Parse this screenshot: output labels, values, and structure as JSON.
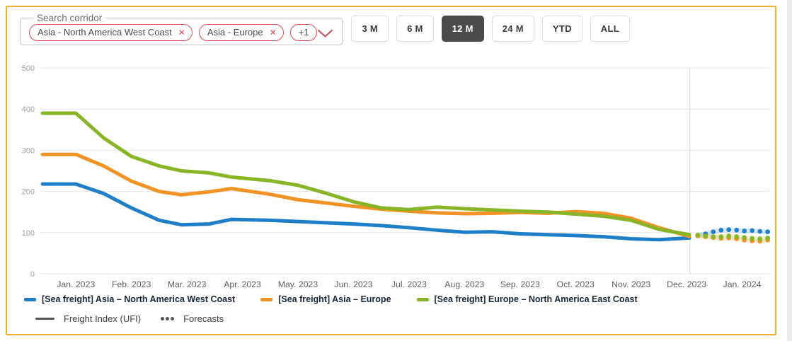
{
  "header": {
    "search_fieldset_label": "Search corridor",
    "corridor_tags": [
      {
        "label": "Asia - North America West Coast",
        "removable": true
      },
      {
        "label": "Asia - Europe",
        "removable": true
      },
      {
        "label": "+1",
        "removable": false
      }
    ],
    "range_buttons": [
      {
        "label": "3 M",
        "selected": false
      },
      {
        "label": "6 M",
        "selected": false
      },
      {
        "label": "12 M",
        "selected": true
      },
      {
        "label": "24 M",
        "selected": false
      },
      {
        "label": "YTD",
        "selected": false
      },
      {
        "label": "ALL",
        "selected": false
      }
    ]
  },
  "colors": {
    "accent_border": "#f0ae2e",
    "tag_red": "#dd4b51",
    "chevron_red": "#c75f63",
    "selected_button_bg": "#4a4a4a",
    "blue": "#1e7ec8",
    "orange": "#f39325",
    "green": "#89b427",
    "gridline": "#e6e6e6",
    "divider": "#d8d8d8"
  },
  "chart_data": {
    "type": "line",
    "title": "",
    "xlabel": "",
    "ylabel": "",
    "ylim": [
      0,
      500
    ],
    "y_ticks": [
      0,
      100,
      200,
      300,
      400,
      500
    ],
    "xlim": [
      -0.64,
      12.49
    ],
    "x_tick_labels": [
      "Jan. 2023",
      "Feb. 2023",
      "Mar. 2023",
      "Apr. 2023",
      "May. 2023",
      "Jun. 2023",
      "Jul. 2023",
      "Aug. 2023",
      "Sep. 2023",
      "Oct. 2023",
      "Nov. 2023",
      "Dec. 2023",
      "Jan. 2024"
    ],
    "x_tick_positions": [
      0,
      1,
      2,
      3,
      4,
      5,
      6,
      7,
      8,
      9,
      10,
      11,
      12
    ],
    "grid": "horizontal",
    "forecast_divider_x": 11.06,
    "x_actual": [
      -0.6,
      0,
      0.5,
      1.0,
      1.5,
      1.9,
      2.4,
      2.8,
      3.5,
      4.0,
      4.5,
      5.0,
      5.5,
      6.0,
      6.5,
      7.0,
      7.5,
      8.0,
      8.5,
      9.0,
      9.5,
      10.0,
      10.5,
      11.05
    ],
    "x_forecast": [
      11.2,
      11.34,
      11.48,
      11.62,
      11.76,
      11.9,
      12.04,
      12.18,
      12.32,
      12.46
    ],
    "series": [
      {
        "name": "[Sea freight] Asia – North America West Coast",
        "color": "#1e7ec8",
        "values": [
          218,
          218,
          195,
          160,
          130,
          119,
          121,
          132,
          130,
          127,
          124,
          121,
          117,
          112,
          106,
          101,
          102,
          97,
          95,
          93,
          90,
          85,
          83,
          87
        ],
        "forecast": [
          93,
          97,
          102,
          106,
          107,
          106,
          104,
          105,
          103,
          102
        ]
      },
      {
        "name": "[Sea freight] Asia – Europe",
        "color": "#f39325",
        "values": [
          290,
          290,
          262,
          225,
          200,
          192,
          199,
          207,
          193,
          180,
          172,
          164,
          157,
          152,
          148,
          146,
          147,
          149,
          147,
          151,
          147,
          135,
          112,
          91
        ],
        "forecast": [
          92,
          90,
          88,
          86,
          87,
          85,
          82,
          80,
          79,
          82
        ]
      },
      {
        "name": "[Sea freight] Europe – North America East Coast",
        "color": "#89b427",
        "values": [
          390,
          390,
          330,
          285,
          262,
          250,
          245,
          235,
          226,
          215,
          196,
          175,
          160,
          156,
          162,
          158,
          155,
          152,
          150,
          145,
          140,
          130,
          108,
          95
        ],
        "forecast": [
          94,
          92,
          90,
          90,
          92,
          90,
          88,
          86,
          85,
          87
        ]
      }
    ],
    "legend_position": "bottom",
    "legend_meta": [
      {
        "label": "Freight Index (UFI)",
        "marker": "line"
      },
      {
        "label": "Forecasts",
        "marker": "dots"
      }
    ]
  }
}
